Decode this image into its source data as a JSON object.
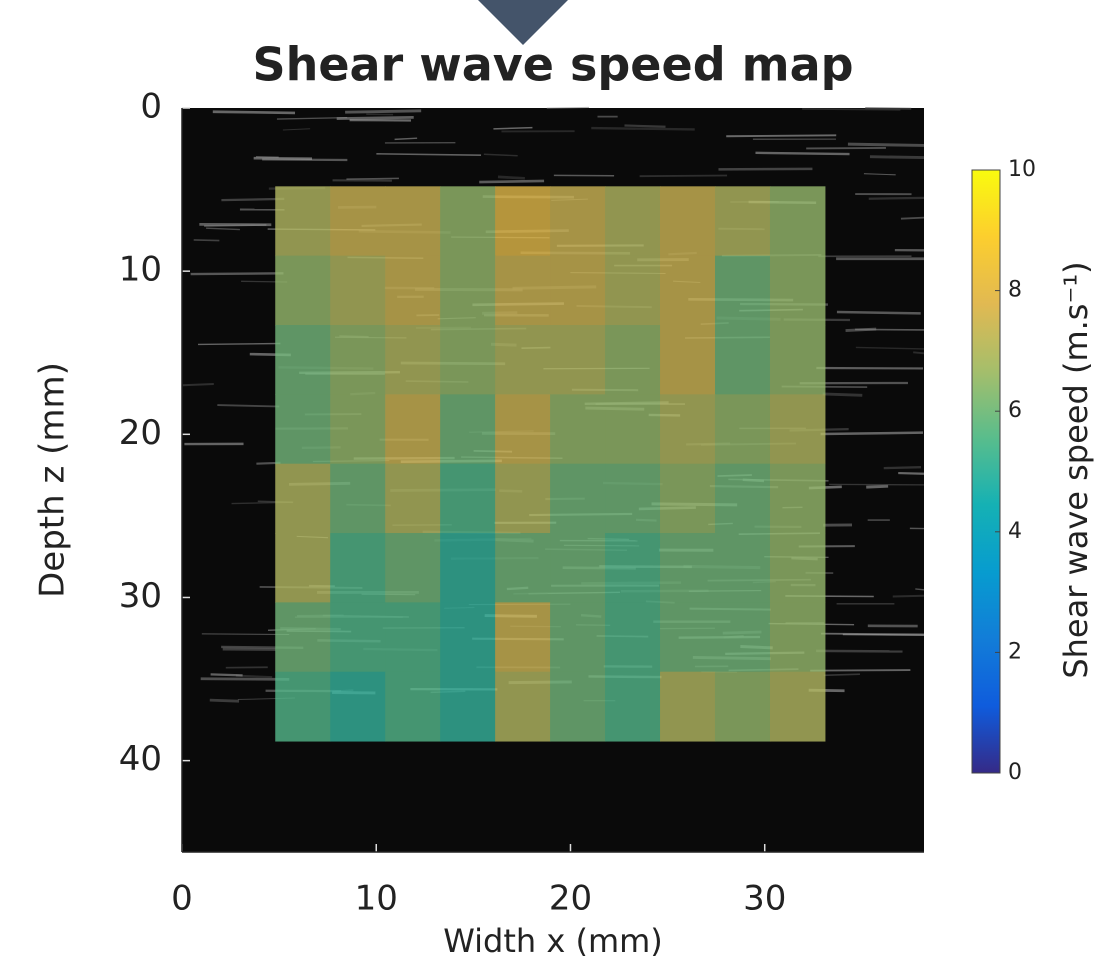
{
  "chart_data": {
    "type": "heatmap",
    "title": "Shear wave speed map",
    "xlabel": "Width x (mm)",
    "ylabel": "Depth z (mm)",
    "xlim": [
      0,
      38.2
    ],
    "ylim": [
      0,
      45.6
    ],
    "y_reversed": true,
    "xticks": [
      0,
      10,
      20,
      30
    ],
    "yticks": [
      0,
      10,
      20,
      30,
      40
    ],
    "map_x": [
      4.8,
      33.1
    ],
    "map_y": [
      4.8,
      38.8
    ],
    "colormap": "parula",
    "clim": [
      0,
      10
    ],
    "cticks": [
      0,
      2,
      4,
      6,
      8,
      10
    ],
    "colorbar_label": "Shear wave speed (m.s⁻¹)",
    "values": [
      [
        7,
        7.5,
        7.5,
        6.5,
        8,
        7.5,
        7,
        7.5,
        7,
        6.5
      ],
      [
        6.5,
        7,
        7.5,
        6.5,
        7.5,
        7.5,
        7,
        7.5,
        6,
        6.5
      ],
      [
        6,
        6.5,
        7,
        6.5,
        7,
        7,
        6.5,
        7.5,
        6,
        6.5
      ],
      [
        6,
        6.5,
        7.5,
        6,
        7.5,
        6.5,
        6.5,
        7,
        6.5,
        7
      ],
      [
        7,
        6,
        7,
        5.5,
        7,
        6,
        6,
        6.5,
        6,
        6.5
      ],
      [
        7,
        5.5,
        6,
        5,
        6,
        6,
        5.5,
        6,
        6,
        6.5
      ],
      [
        6,
        5.5,
        5.5,
        5,
        7.5,
        6,
        5.5,
        6,
        6,
        6.5
      ],
      [
        5.5,
        5,
        5.5,
        5,
        7,
        6,
        5.5,
        7,
        6.5,
        7
      ]
    ]
  }
}
